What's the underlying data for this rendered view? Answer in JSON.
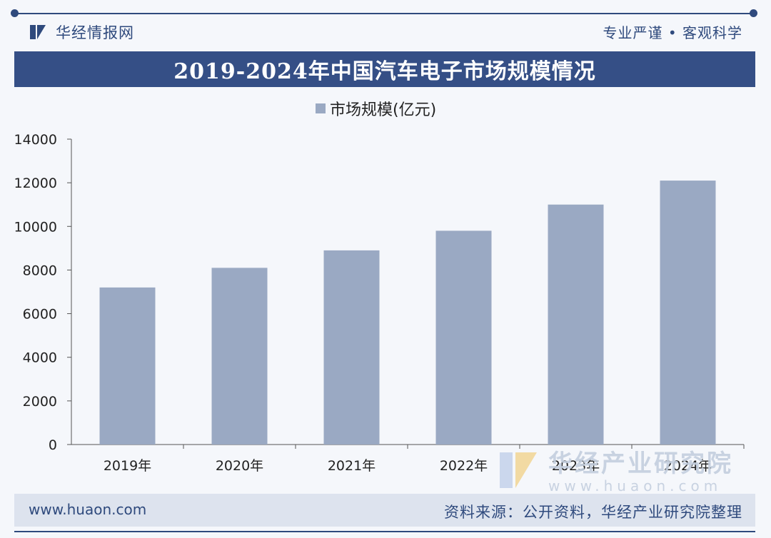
{
  "header": {
    "brand_name": "华经情报网",
    "motto": "专业严谨 • 客观科学"
  },
  "title": "2019-2024年中国汽车电子市场规模情况",
  "chart_data": {
    "type": "bar",
    "title": "2019-2024年中国汽车电子市场规模情况",
    "categories": [
      "2019年",
      "2020年",
      "2021年",
      "2022年",
      "2023年",
      "2024年"
    ],
    "series": [
      {
        "name": "市场规模(亿元)",
        "values": [
          7200,
          8100,
          8900,
          9800,
          11000,
          12100
        ],
        "color": "#9aa9c3"
      }
    ],
    "ylim": [
      0,
      14000
    ],
    "yticks": [
      0,
      2000,
      4000,
      6000,
      8000,
      10000,
      12000,
      14000
    ],
    "xlabel": "",
    "ylabel": "",
    "legend_position": "top-center",
    "grid": false
  },
  "watermark": {
    "text": "华经产业研究院",
    "url": "www.huaon.com"
  },
  "footer": {
    "url": "www.huaon.com",
    "source": "资料来源：公开资料，华经产业研究院整理"
  }
}
